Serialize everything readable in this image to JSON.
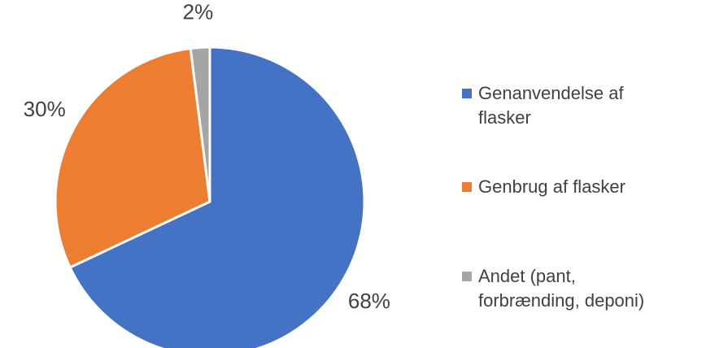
{
  "chart_data": {
    "type": "pie",
    "categories": [
      "Genanvendelse af flasker",
      "Genbrug af flasker",
      "Andet (pant, forbrænding, deponi)"
    ],
    "values": [
      68,
      30,
      2
    ],
    "value_labels": [
      "68%",
      "30%",
      "2%"
    ],
    "colors": [
      "#4472c4",
      "#ed7d31",
      "#a5a5a5"
    ],
    "legend": "right"
  }
}
